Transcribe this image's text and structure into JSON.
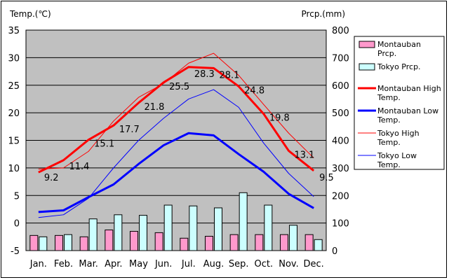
{
  "chart_data": {
    "type": "bar+line",
    "y_left_label": "Temp.(℃)",
    "y_right_label": "Prcp.(mm)",
    "ylim_left": [
      -5,
      35
    ],
    "ylim_right": [
      0,
      800
    ],
    "y_left_ticks": [
      "-5",
      "0",
      "5",
      "10",
      "15",
      "20",
      "25",
      "30",
      "35"
    ],
    "y_right_ticks": [
      "0",
      "100",
      "200",
      "300",
      "400",
      "500",
      "600",
      "700",
      "800"
    ],
    "categories": [
      "Jan.",
      "Feb.",
      "Mar.",
      "Apr.",
      "May",
      "Jun.",
      "Jul.",
      "Aug.",
      "Sep.",
      "Oct.",
      "Nov.",
      "Dec."
    ],
    "grid": "horizontal",
    "legend_position": "right",
    "series": [
      {
        "name": "Montauban Prcp.",
        "type": "bar",
        "axis": "right",
        "color": "#ff99cc",
        "values": [
          55,
          55,
          50,
          75,
          70,
          65,
          45,
          52,
          58,
          58,
          58,
          58
        ]
      },
      {
        "name": "Tokyo Prcp.",
        "type": "bar",
        "axis": "right",
        "color": "#ccffff",
        "values": [
          50,
          58,
          115,
          130,
          128,
          165,
          162,
          155,
          210,
          165,
          92,
          40
        ]
      },
      {
        "name": "Montauban High Temp.",
        "type": "line",
        "axis": "left",
        "color": "#ff0000",
        "values": [
          9.2,
          11.4,
          15.1,
          17.7,
          21.8,
          25.5,
          28.3,
          28.1,
          24.8,
          19.8,
          13.1,
          9.5
        ],
        "labels": [
          "9.2",
          "11.4",
          "15.1",
          "17.7",
          "21.8",
          "25.5",
          "28.3",
          "28.1",
          "24.8",
          "19.8",
          "13.1",
          "9.5"
        ]
      },
      {
        "name": "Montauban Low Temp.",
        "type": "line",
        "axis": "left",
        "color": "#0000ff",
        "values": [
          2.0,
          2.3,
          4.7,
          7.0,
          10.7,
          14.1,
          16.3,
          15.9,
          12.5,
          9.3,
          5.3,
          2.7
        ]
      },
      {
        "name": "Tokyo High Temp.",
        "type": "line",
        "axis": "left",
        "color": "#ff0000",
        "values": [
          9.8,
          10.0,
          13.0,
          18.5,
          22.8,
          25.3,
          29.0,
          30.8,
          26.8,
          21.5,
          16.3,
          11.8
        ]
      },
      {
        "name": "Tokyo Low Temp.",
        "type": "line",
        "axis": "left",
        "color": "#0000ff",
        "values": [
          1.0,
          1.5,
          4.5,
          10.0,
          15.0,
          19.0,
          22.5,
          24.2,
          21.0,
          14.5,
          9.0,
          4.8
        ]
      }
    ]
  },
  "legend": {
    "montauban_prcp": "Montauban Prcp.",
    "tokyo_prcp": "Tokyo Prcp.",
    "montauban_high": "Montauban High Temp.",
    "montauban_low": "Montauban Low Temp.",
    "tokyo_high": "Tokyo High Temp.",
    "tokyo_low": "Tokyo Low Temp."
  }
}
